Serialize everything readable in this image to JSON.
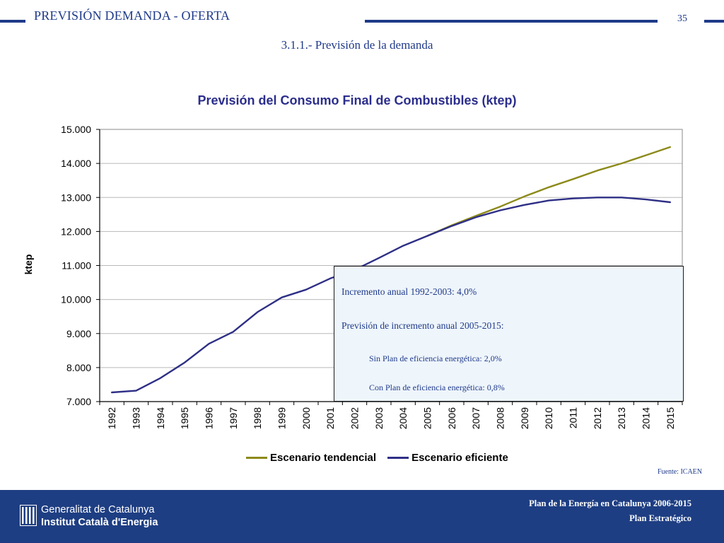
{
  "header": {
    "title": "PREVISIÓN DEMANDA - OFERTA",
    "page_number": "35",
    "subtitle": "3.1.1.- Previsión de la demanda"
  },
  "colors": {
    "brand_blue": "#1f3a8a",
    "footer_blue": "#1e3e83",
    "title_blue": "#2b2e8c",
    "tendencial": "#8c8a1a",
    "eficiente": "#2e2f86",
    "note_bg": "#eef5fb"
  },
  "chart_data": {
    "type": "line",
    "title": "Previsión del Consumo Final de Combustibles (ktep)",
    "xlabel": "",
    "ylabel": "ktep",
    "ylim": [
      7000,
      15000
    ],
    "yticks": [
      {
        "value": 7000,
        "label": "7.000"
      },
      {
        "value": 8000,
        "label": "8.000"
      },
      {
        "value": 9000,
        "label": "9.000"
      },
      {
        "value": 10000,
        "label": "10.000"
      },
      {
        "value": 11000,
        "label": "11.000"
      },
      {
        "value": 12000,
        "label": "12.000"
      },
      {
        "value": 13000,
        "label": "13.000"
      },
      {
        "value": 14000,
        "label": "14.000"
      },
      {
        "value": 15000,
        "label": "15.000"
      }
    ],
    "grid": true,
    "legend_position": "bottom",
    "categories": [
      "1992",
      "1993",
      "1994",
      "1995",
      "1996",
      "1997",
      "1998",
      "1999",
      "2000",
      "2001",
      "2002",
      "2003",
      "2004",
      "2005",
      "2006",
      "2007",
      "2008",
      "2009",
      "2010",
      "2011",
      "2012",
      "2013",
      "2014",
      "2015"
    ],
    "series": [
      {
        "name": "Escenario tendencial",
        "color": "#8c8a1a",
        "values": [
          null,
          null,
          null,
          null,
          null,
          null,
          null,
          null,
          null,
          null,
          null,
          null,
          null,
          11870,
          12180,
          12460,
          12730,
          13030,
          13300,
          13540,
          13790,
          14000,
          14240,
          14480
        ]
      },
      {
        "name": "Escenario eficiente",
        "color": "#2e2f86",
        "values": [
          7270,
          7320,
          7690,
          8150,
          8700,
          9050,
          9630,
          10060,
          10290,
          10620,
          10870,
          11220,
          11580,
          11870,
          12160,
          12420,
          12620,
          12780,
          12910,
          12970,
          13000,
          13000,
          12940,
          12860
        ]
      }
    ]
  },
  "notes": {
    "line1": "Incremento anual 1992-2003: 4,0%",
    "line2": "Previsión de incremento anual 2005-2015:",
    "line3": "Sin Plan de eficiencia energética: 2,0%",
    "line4": "Con Plan de eficiencia energética: 0,8%"
  },
  "source": "Fuente: ICAEN",
  "footer": {
    "org_line1": "Generalitat de Catalunya",
    "org_line2": "Institut Català d'Energia",
    "plan_line1": "Plan de la Energía en Catalunya 2006-2015",
    "plan_line2": "Plan Estratégico"
  }
}
